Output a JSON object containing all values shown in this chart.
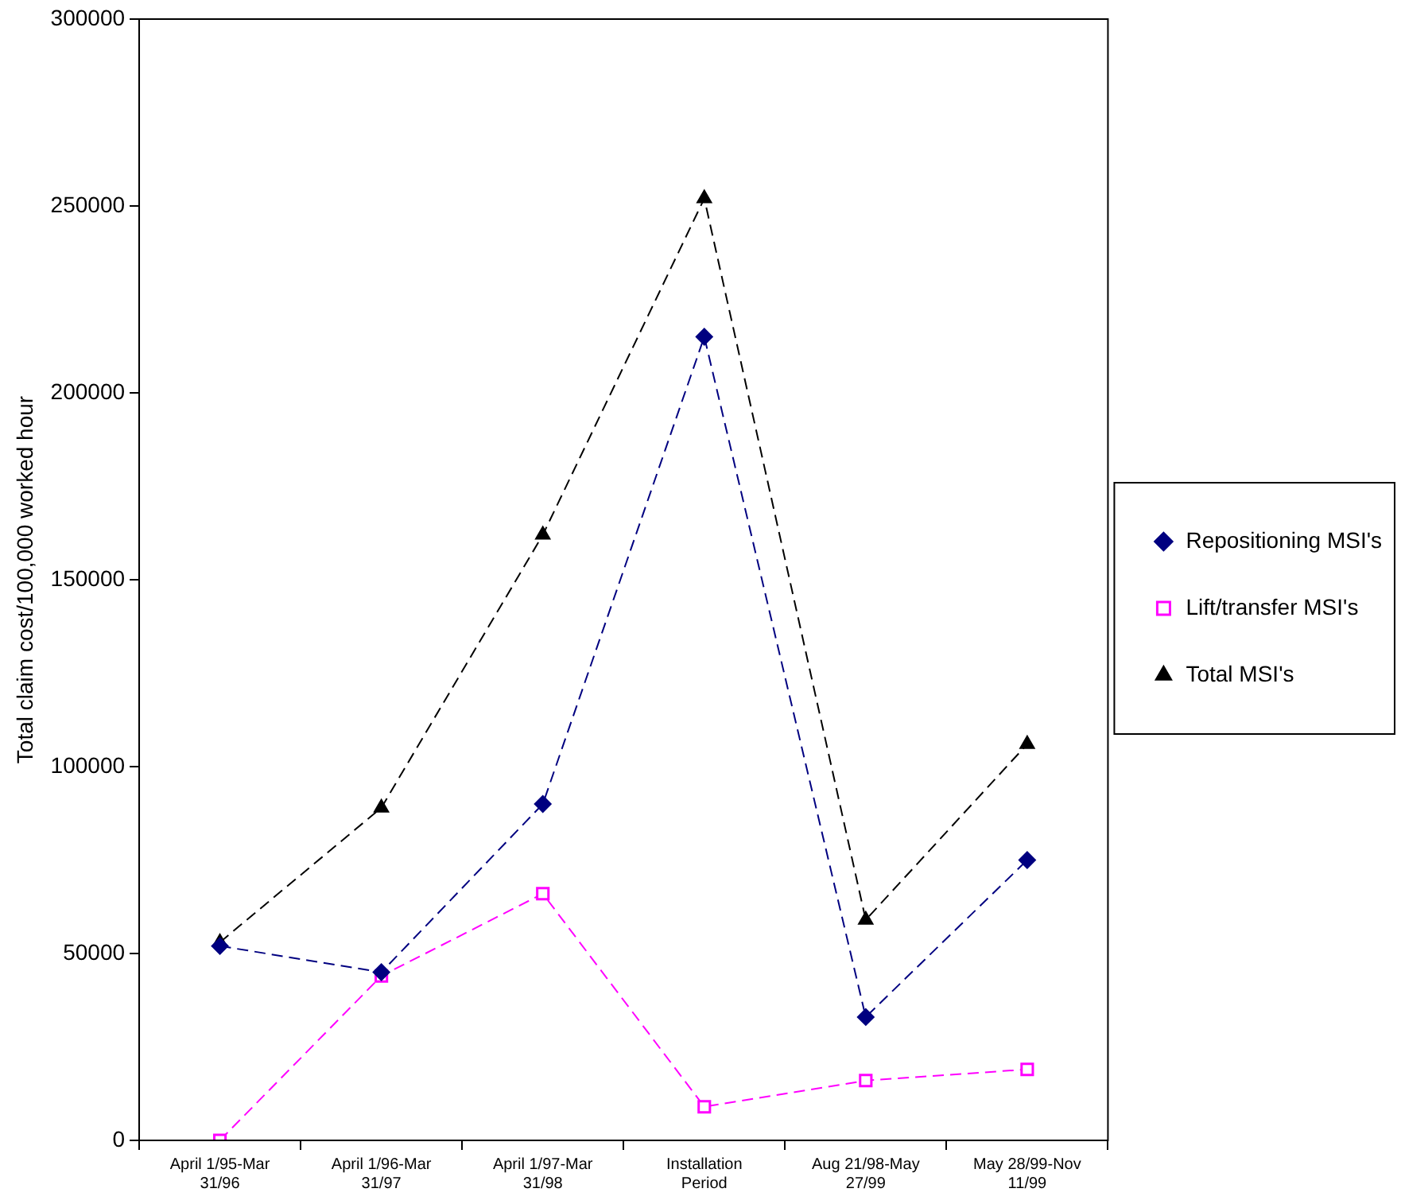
{
  "chart_data": {
    "type": "line",
    "ylabel": "Total claim cost/100,000 worked hour",
    "categories": [
      "April 1/95-Mar 31/96",
      "April 1/96-Mar 31/97",
      "April 1/97-Mar 31/98",
      "Installation Period",
      "Aug 21/98-May 27/99",
      "May 28/99-Nov 11/99"
    ],
    "series": [
      {
        "name": "Repositioning MSI's",
        "color": "#000080",
        "marker": "diamond",
        "values": [
          52000,
          45000,
          90000,
          215000,
          33000,
          75000
        ]
      },
      {
        "name": "Lift/transfer MSI's",
        "color": "#ff00ff",
        "marker": "square",
        "values": [
          0,
          44000,
          66000,
          9000,
          16000,
          19000
        ]
      },
      {
        "name": "Total MSI's",
        "color": "#000000",
        "marker": "triangle",
        "values": [
          53000,
          89000,
          162000,
          252000,
          59000,
          106000
        ]
      }
    ],
    "ylim": [
      0,
      300000
    ],
    "yticks": [
      0,
      50000,
      100000,
      150000,
      200000,
      250000,
      300000
    ],
    "grid": false,
    "legend": "right",
    "line_style": "dashed"
  }
}
